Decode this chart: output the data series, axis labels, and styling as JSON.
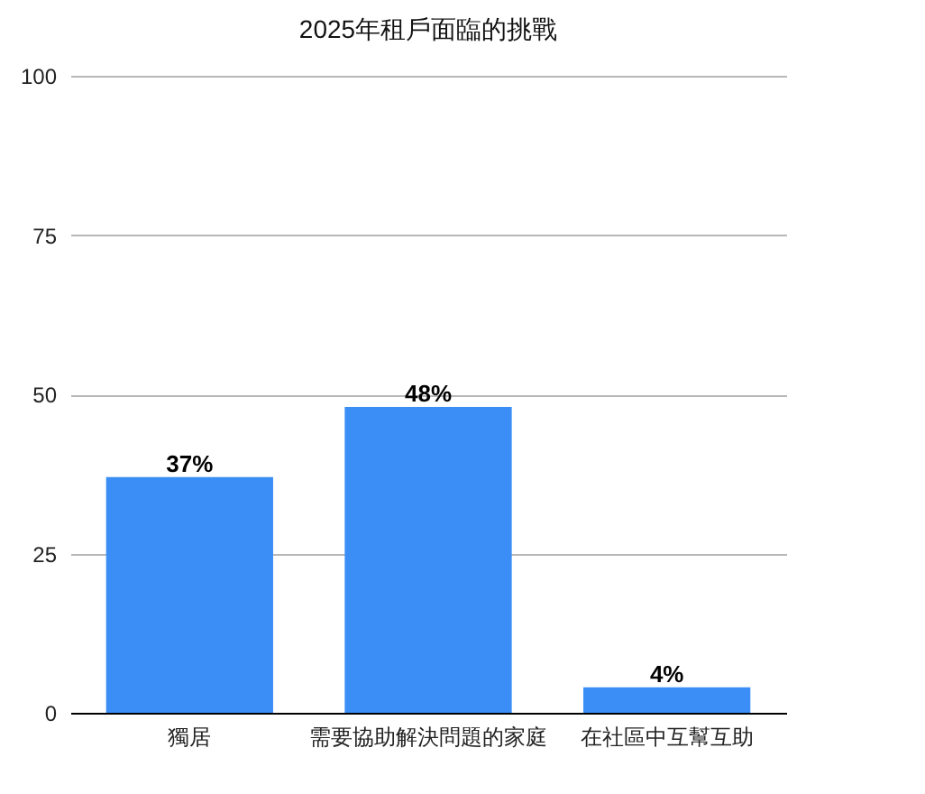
{
  "chart_data": {
    "type": "bar",
    "title": "2025年租戶面臨的挑戰",
    "categories": [
      "獨居",
      "需要協助解決問題的家庭",
      "在社區中互幫互助"
    ],
    "values": [
      37,
      48,
      4
    ],
    "color": "#3a8ef6",
    "value_labels": [
      "37%",
      "48%",
      "4%"
    ],
    "ylim": [
      0,
      100
    ],
    "yticks": [
      0,
      25,
      50,
      75,
      100
    ],
    "grid": "y"
  }
}
